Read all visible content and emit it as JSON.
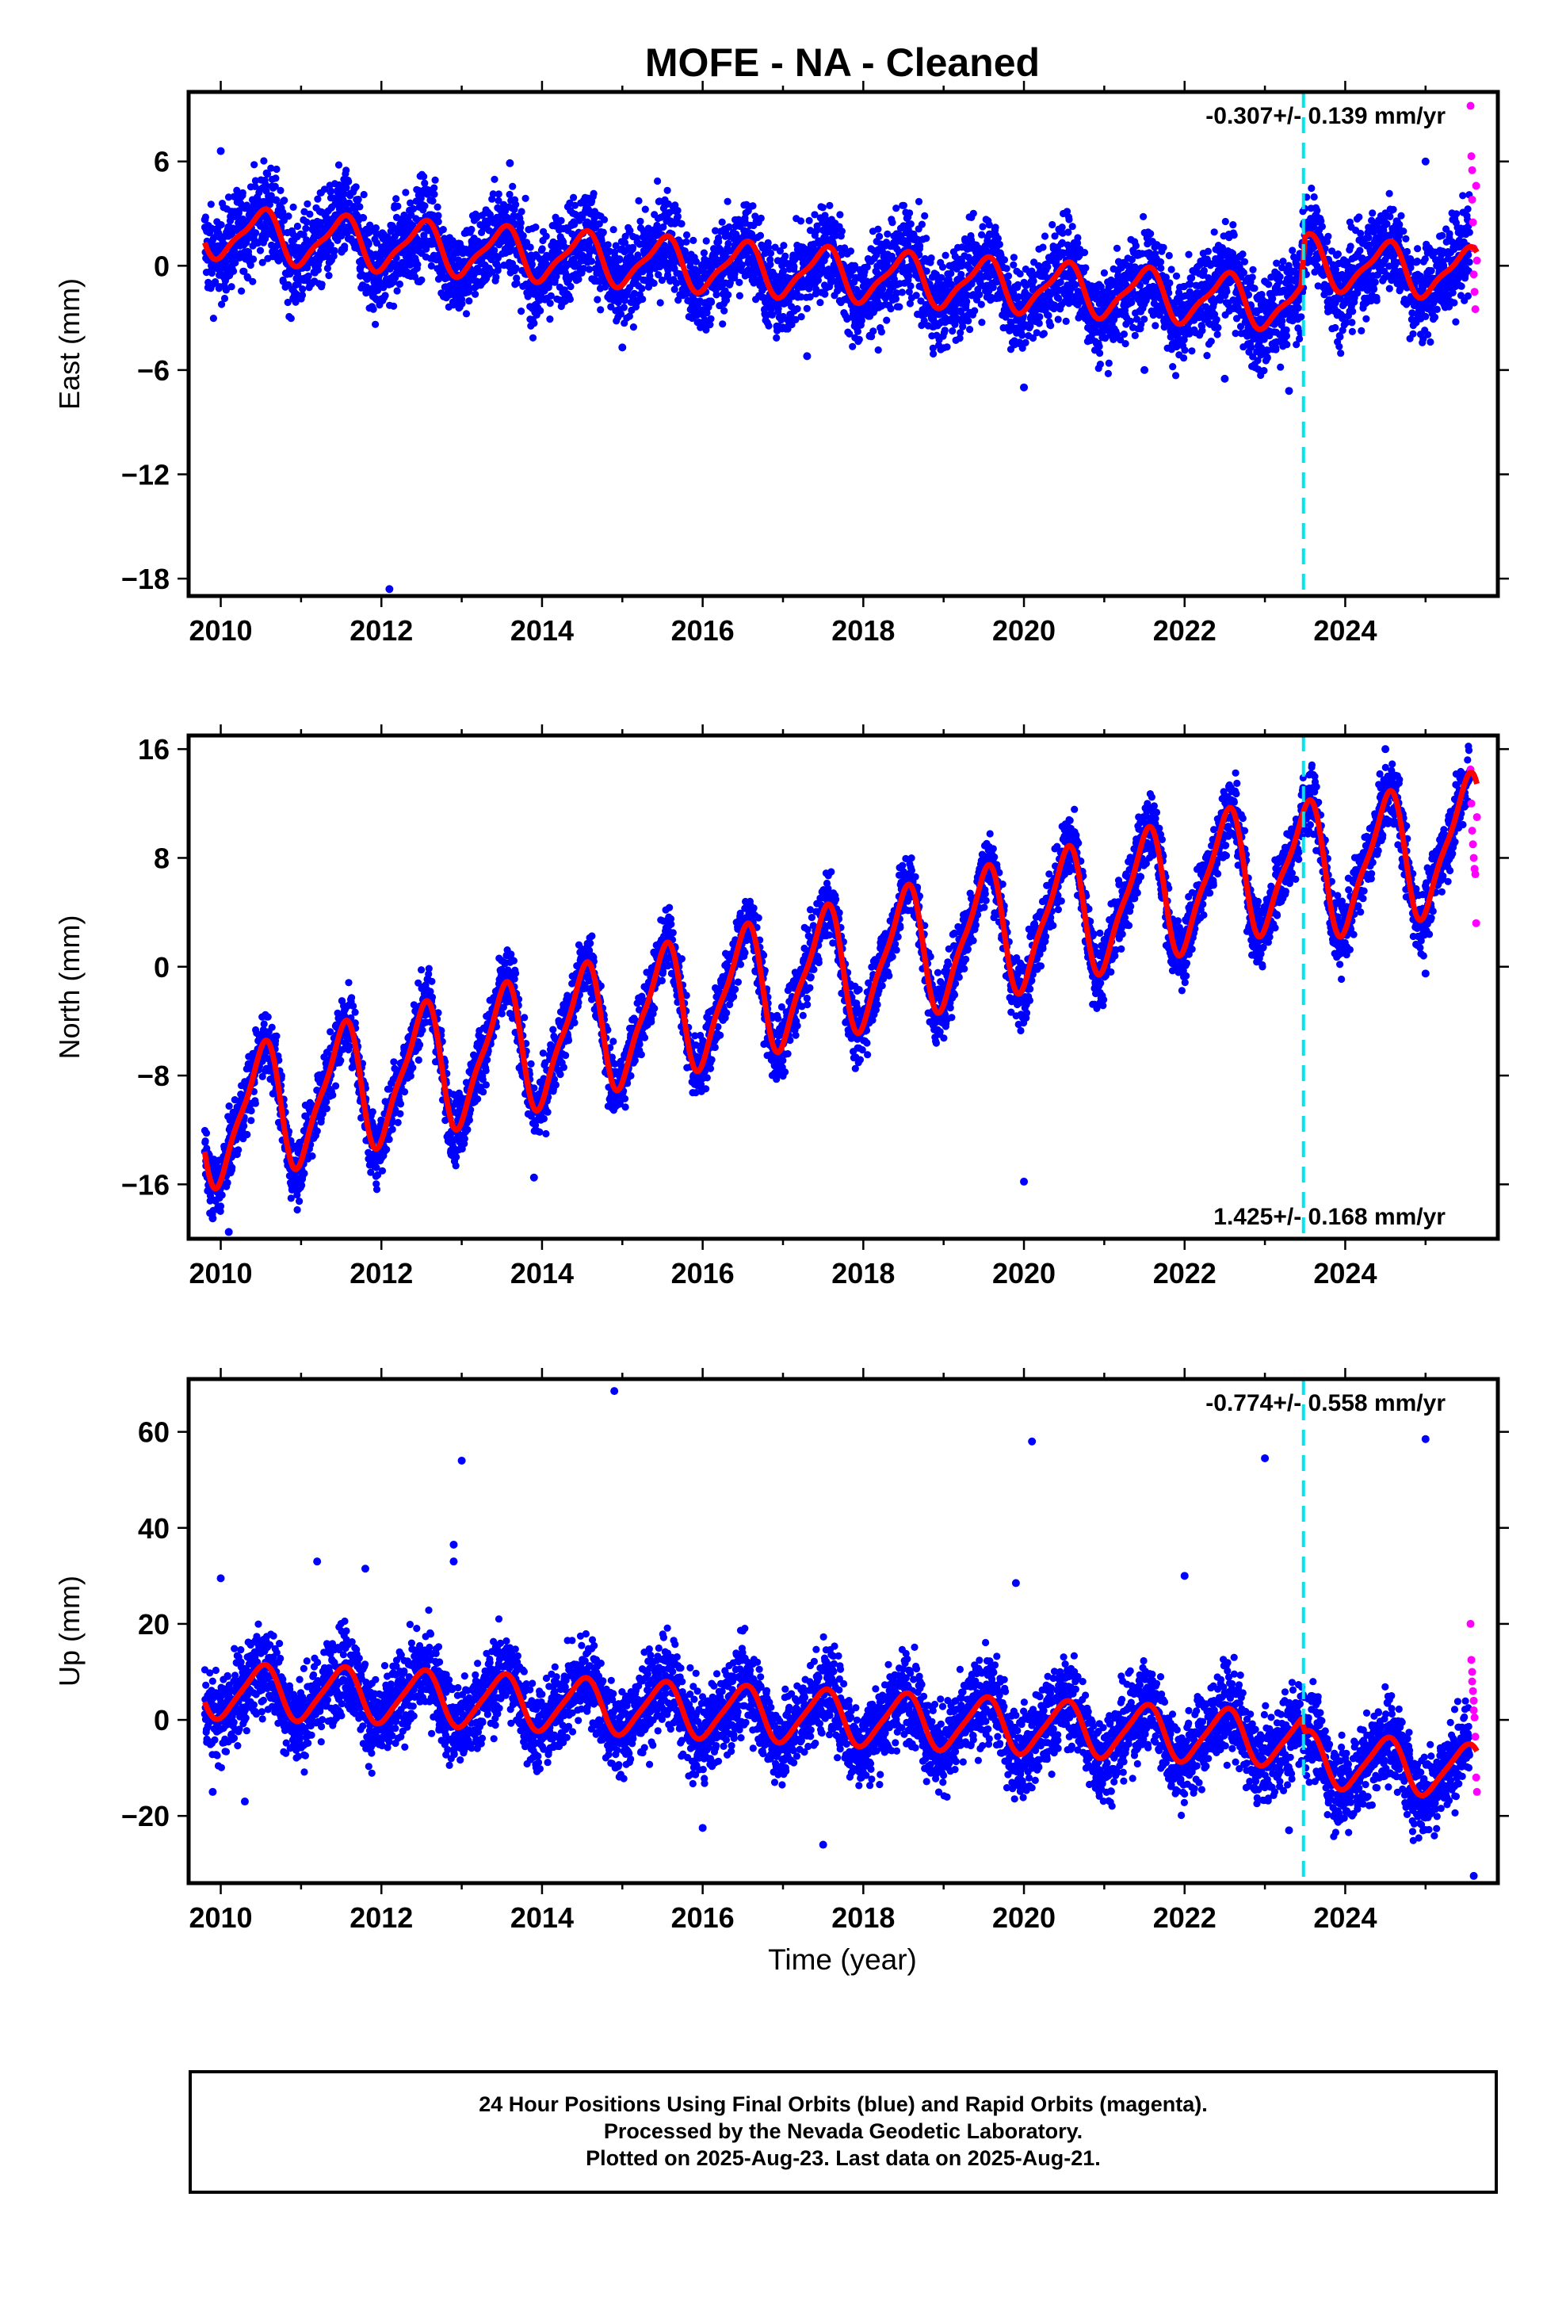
{
  "title": "MOFE  - NA - Cleaned",
  "xlabel": "Time (year)",
  "caption": {
    "line1": "24 Hour Positions Using Final Orbits (blue) and Rapid Orbits (magenta).",
    "line2": "Processed by the Nevada Geodetic Laboratory.",
    "line3": "Plotted on 2025-Aug-23. Last data on 2025-Aug-21."
  },
  "colors": {
    "final": "#0000ff",
    "rapid": "#ff00ff",
    "model": "#ff0000",
    "break": "#00e5ee"
  },
  "chart_data": [
    {
      "type": "scatter",
      "ylabel": "East (mm)",
      "rate_label": "-0.307+/- 0.139 mm/yr",
      "rate_position": "top-right",
      "xlim": [
        2009.6,
        2025.9
      ],
      "ylim": [
        -19,
        10
      ],
      "xticks": [
        2010,
        2012,
        2014,
        2016,
        2018,
        2020,
        2022,
        2024
      ],
      "yticks": [
        6,
        0,
        -6,
        -12,
        -18
      ],
      "data_start": 2009.8,
      "data_end": 2025.64,
      "rapid_start": 2025.55,
      "break_epoch": 2023.48,
      "noise_sd": 1.3,
      "annual_amplitude": 1.4,
      "semiannual_amplitude": 0.4,
      "model_points": [
        [
          2009.8,
          2.0
        ],
        [
          2011.0,
          1.5
        ],
        [
          2012.0,
          1.2
        ],
        [
          2013.0,
          0.9
        ],
        [
          2014.0,
          0.6
        ],
        [
          2015.0,
          0.3
        ],
        [
          2016.0,
          0.0
        ],
        [
          2017.0,
          -0.3
        ],
        [
          2018.0,
          -0.6
        ],
        [
          2019.0,
          -0.9
        ],
        [
          2020.0,
          -1.2
        ],
        [
          2021.0,
          -1.5
        ],
        [
          2022.0,
          -1.8
        ],
        [
          2023.0,
          -2.1
        ],
        [
          2023.45,
          -2.3
        ],
        [
          2023.5,
          0.3
        ],
        [
          2024.0,
          0.0
        ],
        [
          2025.0,
          -0.3
        ],
        [
          2025.64,
          -0.5
        ]
      ],
      "outliers": [
        [
          2010.0,
          6.6
        ],
        [
          2012.1,
          -18.6
        ],
        [
          2013.6,
          5.9
        ],
        [
          2017.3,
          -5.2
        ],
        [
          2020.0,
          -7.0
        ],
        [
          2021.5,
          -6.0
        ],
        [
          2022.5,
          -6.5
        ],
        [
          2023.3,
          -7.2
        ],
        [
          2025.0,
          6.0
        ],
        [
          2015.0,
          -4.7
        ]
      ],
      "rapid_points": [
        [
          2025.56,
          9.2
        ],
        [
          2025.57,
          6.3
        ],
        [
          2025.58,
          5.5
        ],
        [
          2025.58,
          3.8
        ],
        [
          2025.59,
          2.5
        ],
        [
          2025.6,
          1.0
        ],
        [
          2025.6,
          -0.5
        ],
        [
          2025.61,
          -1.5
        ],
        [
          2025.62,
          -2.5
        ],
        [
          2025.63,
          4.6
        ],
        [
          2025.64,
          0.3
        ]
      ]
    },
    {
      "type": "scatter",
      "ylabel": "North (mm)",
      "rate_label": "1.425+/- 0.168 mm/yr",
      "rate_position": "bottom-right",
      "xlim": [
        2009.6,
        2025.9
      ],
      "ylim": [
        -20,
        17
      ],
      "xticks": [
        2010,
        2012,
        2014,
        2016,
        2018,
        2020,
        2022,
        2024
      ],
      "yticks": [
        16,
        8,
        0,
        -8,
        -16
      ],
      "data_start": 2009.8,
      "data_end": 2025.64,
      "rapid_start": 2025.55,
      "break_epoch": 2023.48,
      "noise_sd": 1.2,
      "annual_amplitude": 4.5,
      "semiannual_amplitude": 1.2,
      "model_points": [
        [
          2009.8,
          -11.5
        ],
        [
          2011.0,
          -9.8
        ],
        [
          2012.0,
          -8.3
        ],
        [
          2013.0,
          -6.9
        ],
        [
          2014.0,
          -5.5
        ],
        [
          2015.0,
          -4.0
        ],
        [
          2016.0,
          -2.6
        ],
        [
          2017.0,
          -1.2
        ],
        [
          2018.0,
          0.2
        ],
        [
          2019.0,
          1.7
        ],
        [
          2020.0,
          3.1
        ],
        [
          2021.0,
          4.5
        ],
        [
          2022.0,
          5.9
        ],
        [
          2023.0,
          7.3
        ],
        [
          2024.0,
          7.2
        ],
        [
          2025.0,
          8.5
        ],
        [
          2025.64,
          9.4
        ]
      ],
      "outliers": [
        [
          2009.9,
          -18.5
        ],
        [
          2010.1,
          -19.5
        ],
        [
          2013.9,
          -15.5
        ],
        [
          2020.0,
          -15.8
        ],
        [
          2011.8,
          -11.8
        ],
        [
          2025.0,
          -0.5
        ],
        [
          2024.5,
          16.0
        ],
        [
          2012.6,
          -3.2
        ]
      ],
      "rapid_points": [
        [
          2025.56,
          14.5
        ],
        [
          2025.57,
          12.0
        ],
        [
          2025.58,
          10.0
        ],
        [
          2025.59,
          9.0
        ],
        [
          2025.6,
          8.0
        ],
        [
          2025.61,
          7.2
        ],
        [
          2025.62,
          6.8
        ],
        [
          2025.63,
          3.2
        ],
        [
          2025.64,
          11.0
        ]
      ]
    },
    {
      "type": "scatter",
      "ylabel": "Up (mm)",
      "rate_label": "-0.774+/- 0.558 mm/yr",
      "rate_position": "top-right",
      "xlim": [
        2009.6,
        2025.9
      ],
      "ylim": [
        -34,
        71
      ],
      "xticks": [
        2010,
        2012,
        2014,
        2016,
        2018,
        2020,
        2022,
        2024
      ],
      "yticks": [
        60,
        40,
        20,
        0,
        -20
      ],
      "data_start": 2009.8,
      "data_end": 2025.64,
      "rapid_start": 2025.55,
      "break_epoch": 2023.48,
      "noise_sd": 4.5,
      "annual_amplitude": 5.5,
      "semiannual_amplitude": 1.0,
      "model_points": [
        [
          2009.8,
          6.0
        ],
        [
          2011.0,
          5.5
        ],
        [
          2012.0,
          5.0
        ],
        [
          2013.0,
          4.2
        ],
        [
          2014.0,
          3.4
        ],
        [
          2015.0,
          2.6
        ],
        [
          2016.0,
          1.8
        ],
        [
          2017.0,
          1.0
        ],
        [
          2018.0,
          0.2
        ],
        [
          2019.0,
          -0.6
        ],
        [
          2020.0,
          -1.4
        ],
        [
          2021.0,
          -2.2
        ],
        [
          2022.0,
          -3.0
        ],
        [
          2023.0,
          -3.8
        ],
        [
          2023.45,
          -4.5
        ],
        [
          2023.5,
          -8.0
        ],
        [
          2024.0,
          -8.8
        ],
        [
          2025.0,
          -10.0
        ],
        [
          2025.64,
          -11.0
        ]
      ],
      "outliers": [
        [
          2013.0,
          54.0
        ],
        [
          2014.9,
          68.5
        ],
        [
          2020.1,
          58.0
        ],
        [
          2023.0,
          54.5
        ],
        [
          2025.0,
          58.5
        ],
        [
          2012.9,
          36.5
        ],
        [
          2012.9,
          33.0
        ],
        [
          2011.2,
          33.0
        ],
        [
          2019.9,
          28.5
        ],
        [
          2022.0,
          30.0
        ],
        [
          2010.0,
          29.5
        ],
        [
          2011.8,
          31.5
        ],
        [
          2017.5,
          -26.0
        ],
        [
          2016.0,
          -22.5
        ],
        [
          2023.3,
          -23.0
        ],
        [
          2025.6,
          -32.5
        ],
        [
          2010.3,
          -17.0
        ],
        [
          2009.9,
          -15.0
        ]
      ],
      "rapid_points": [
        [
          2025.56,
          20.0
        ],
        [
          2025.57,
          12.5
        ],
        [
          2025.58,
          10.0
        ],
        [
          2025.58,
          8.0
        ],
        [
          2025.59,
          6.0
        ],
        [
          2025.6,
          4.0
        ],
        [
          2025.6,
          2.0
        ],
        [
          2025.61,
          0.5
        ],
        [
          2025.62,
          -3.5
        ],
        [
          2025.63,
          -12.0
        ],
        [
          2025.64,
          -15.0
        ]
      ]
    }
  ]
}
